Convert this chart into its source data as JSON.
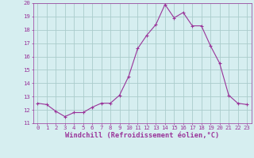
{
  "x": [
    0,
    1,
    2,
    3,
    4,
    5,
    6,
    7,
    8,
    9,
    10,
    11,
    12,
    13,
    14,
    15,
    16,
    17,
    18,
    19,
    20,
    21,
    22,
    23
  ],
  "y": [
    12.5,
    12.4,
    11.9,
    11.5,
    11.8,
    11.8,
    12.2,
    12.5,
    12.5,
    13.1,
    14.5,
    16.6,
    17.6,
    18.4,
    19.9,
    18.9,
    19.3,
    18.3,
    18.3,
    16.8,
    15.5,
    13.1,
    12.5,
    12.4
  ],
  "line_color": "#993399",
  "marker": "+",
  "marker_size": 3,
  "marker_linewidth": 0.8,
  "bg_color": "#d6eef0",
  "grid_color": "#aacccc",
  "xlabel": "Windchill (Refroidissement éolien,°C)",
  "ylabel": "",
  "xlim": [
    -0.5,
    23.5
  ],
  "ylim": [
    11,
    20
  ],
  "yticks": [
    11,
    12,
    13,
    14,
    15,
    16,
    17,
    18,
    19,
    20
  ],
  "xticks": [
    0,
    1,
    2,
    3,
    4,
    5,
    6,
    7,
    8,
    9,
    10,
    11,
    12,
    13,
    14,
    15,
    16,
    17,
    18,
    19,
    20,
    21,
    22,
    23
  ],
  "tick_color": "#993399",
  "label_color": "#993399",
  "tick_fontsize": 5.2,
  "xlabel_fontsize": 6.2,
  "line_width": 0.8
}
